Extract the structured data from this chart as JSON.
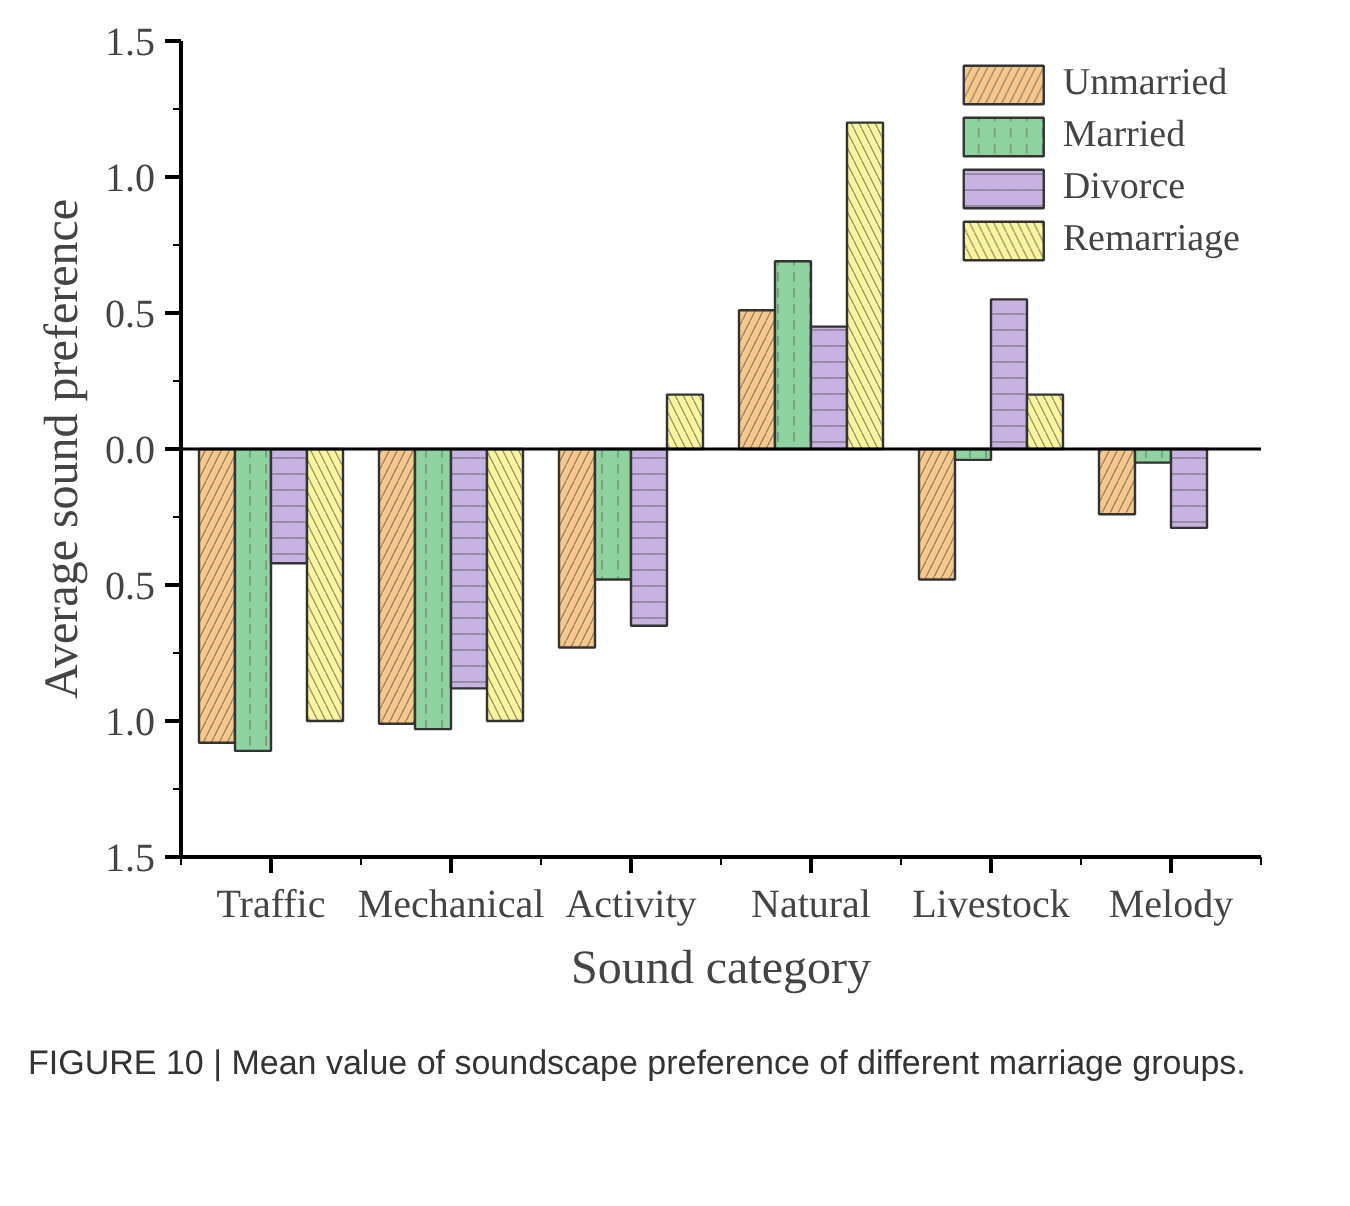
{
  "chart_data": {
    "type": "bar",
    "xlabel": "Sound category",
    "ylabel": "Average sound preference",
    "categories": [
      "Traffic",
      "Mechanical",
      "Activity",
      "Natural",
      "Livestock",
      "Melody"
    ],
    "series": [
      {
        "name": "Unmarried",
        "color": "#f8c88a",
        "values": [
          -1.08,
          -1.01,
          -0.73,
          0.51,
          -0.48,
          -0.24
        ]
      },
      {
        "name": "Married",
        "color": "#8fd4a0",
        "values": [
          -1.11,
          -1.03,
          -0.48,
          0.69,
          -0.04,
          -0.05
        ]
      },
      {
        "name": "Divorce",
        "color": "#c8b2e2",
        "values": [
          -0.42,
          -0.88,
          -0.65,
          0.45,
          0.55,
          -0.29
        ]
      },
      {
        "name": "Remarriage",
        "color": "#fbf59c",
        "values": [
          -1.0,
          -1.0,
          0.2,
          1.2,
          0.2,
          null
        ]
      }
    ],
    "ylim": [
      -1.5,
      1.5
    ],
    "yticks": [
      {
        "value": -1.5,
        "label": "1.5"
      },
      {
        "value": -1.0,
        "label": "1.0"
      },
      {
        "value": -0.5,
        "label": "0.5"
      },
      {
        "value": 0,
        "label": "0.0"
      },
      {
        "value": 0.5,
        "label": "0.5"
      },
      {
        "value": 1,
        "label": "1.0"
      },
      {
        "value": 1.5,
        "label": "1.5"
      }
    ],
    "ref_lines": [
      {
        "axis": "y",
        "value": 0
      }
    ],
    "grid": false,
    "legend": "top right",
    "annotations": [
      "FIGURE 10 | Mean value of soundscape preference of different marriage groups."
    ]
  }
}
